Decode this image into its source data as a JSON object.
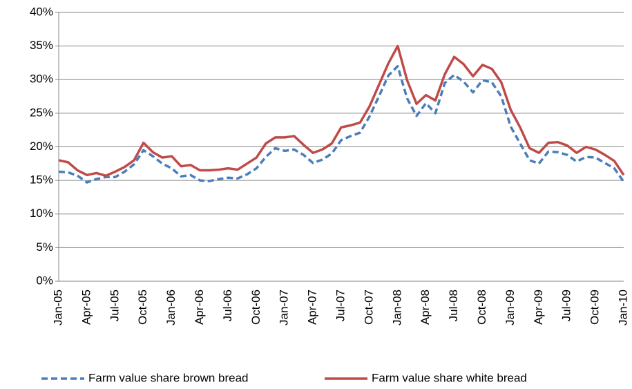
{
  "chart_data": {
    "type": "line",
    "categories": [
      "Jan-05",
      null,
      null,
      "Apr-05",
      null,
      null,
      "Jul-05",
      null,
      null,
      "Oct-05",
      null,
      null,
      "Jan-06",
      null,
      null,
      "Apr-06",
      null,
      null,
      "Jul-06",
      null,
      null,
      "Oct-06",
      null,
      null,
      "Jan-07",
      null,
      null,
      "Apr-07",
      null,
      null,
      "Jul-07",
      null,
      null,
      "Oct-07",
      null,
      null,
      "Jan-08",
      null,
      null,
      "Apr-08",
      null,
      null,
      "Jul-08",
      null,
      null,
      "Oct-08",
      null,
      null,
      "Jan-09",
      null,
      null,
      "Apr-09",
      null,
      null,
      "Jul-09",
      null,
      null,
      "Oct-09",
      null,
      null,
      "Jan-10"
    ],
    "series": [
      {
        "name": "Farm value share brown bread",
        "color": "#4a7ebb",
        "dashed": true,
        "values": [
          16.3,
          16.2,
          15.7,
          14.7,
          15.2,
          15.5,
          15.5,
          16.3,
          17.4,
          19.5,
          18.6,
          17.5,
          16.8,
          15.6,
          15.8,
          15.0,
          14.9,
          15.2,
          15.4,
          15.3,
          15.9,
          16.8,
          18.5,
          19.8,
          19.4,
          19.6,
          18.8,
          17.6,
          18.1,
          19.0,
          21.0,
          21.6,
          22.1,
          24.5,
          27.5,
          30.6,
          32,
          27.2,
          24.6,
          26.5,
          25,
          29.5,
          30.7,
          29.7,
          28.1,
          29.9,
          29.6,
          27.5,
          23,
          20.5,
          18,
          17.5,
          19.3,
          19.2,
          18.8,
          17.8,
          18.5,
          18.4,
          17.6,
          16.8,
          14.8
        ]
      },
      {
        "name": "Farm value share white bread",
        "color": "#be4b48",
        "dashed": false,
        "values": [
          18,
          17.7,
          16.5,
          15.8,
          16.1,
          15.7,
          16.3,
          17,
          18,
          20.6,
          19.2,
          18.4,
          18.6,
          17.1,
          17.3,
          16.5,
          16.5,
          16.6,
          16.8,
          16.6,
          17.5,
          18.4,
          20.5,
          21.4,
          21.4,
          21.6,
          20.3,
          19.1,
          19.6,
          20.5,
          22.9,
          23.2,
          23.6,
          26,
          29.2,
          32.4,
          35,
          29.9,
          26.4,
          27.7,
          26.9,
          30.8,
          33.4,
          32.3,
          30.5,
          32.2,
          31.6,
          29.6,
          25.5,
          22.9,
          19.8,
          19.1,
          20.6,
          20.7,
          20.2,
          19.1,
          20,
          19.6,
          18.8,
          17.9,
          15.8
        ]
      }
    ],
    "ylim": [
      0,
      40
    ],
    "yticks": [
      {
        "value": 0,
        "label": "0%"
      },
      {
        "value": 5,
        "label": "5%"
      },
      {
        "value": 10,
        "label": "10%"
      },
      {
        "value": 15,
        "label": "15%"
      },
      {
        "value": 20,
        "label": "20%"
      },
      {
        "value": 25,
        "label": "25%"
      },
      {
        "value": 30,
        "label": "30%"
      },
      {
        "value": 35,
        "label": "35%"
      },
      {
        "value": 40,
        "label": "40%"
      }
    ],
    "grid": true,
    "legend": "bottom"
  }
}
